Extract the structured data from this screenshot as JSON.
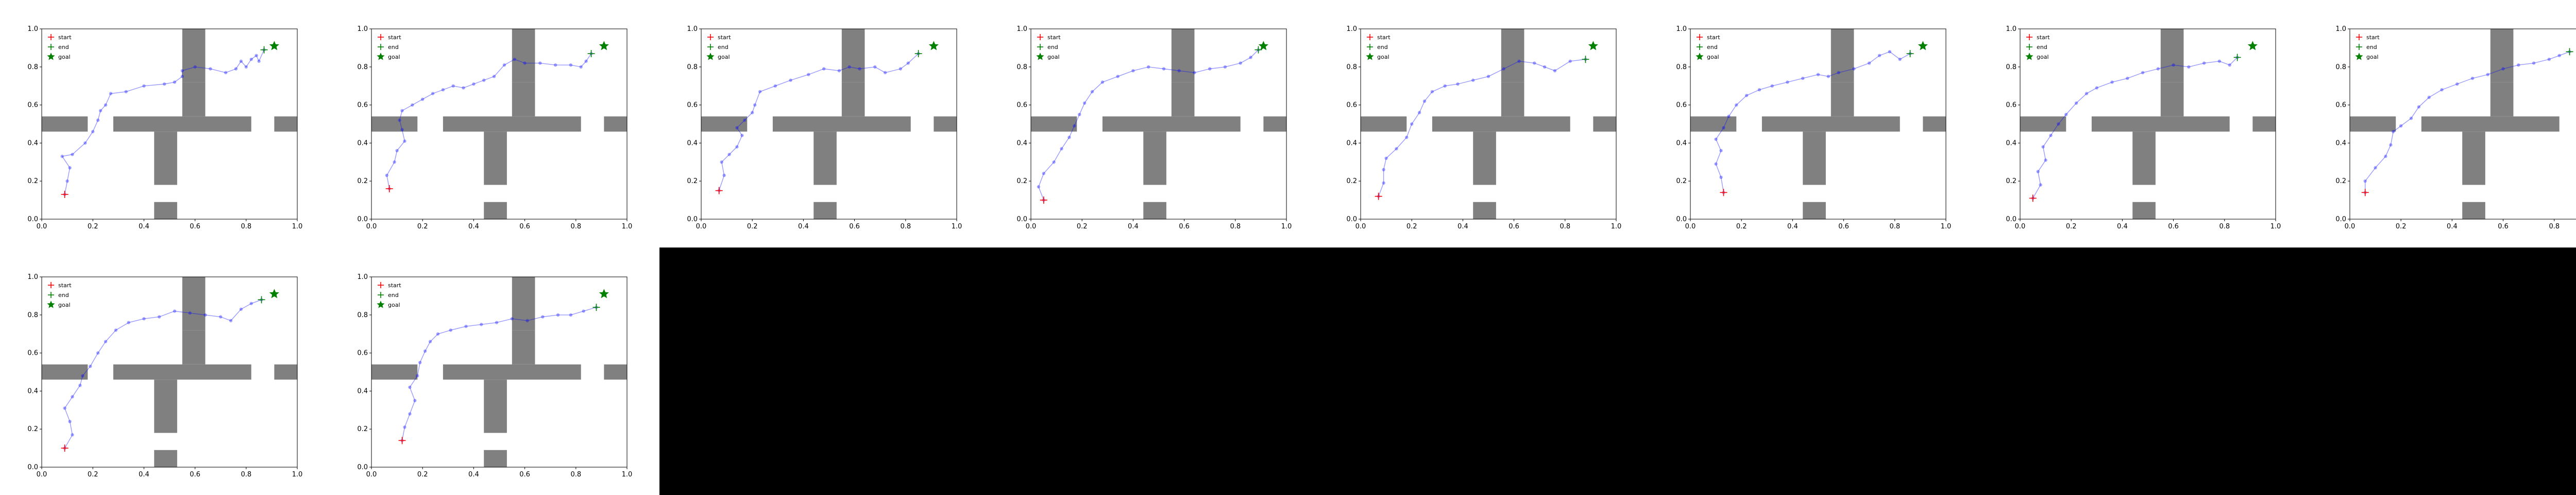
{
  "figure": {
    "rows": 2,
    "cols": 8,
    "panel_count": 10,
    "blank_area_color": "#000000"
  },
  "legend": {
    "labels": [
      "start",
      "end",
      "goal"
    ],
    "placement": "top-left"
  },
  "colors": {
    "obstacle": "#808080",
    "path": "#0000ff",
    "start": "#ff0000",
    "end": "#008000",
    "goal": "#008000"
  },
  "axes": {
    "xlim": [
      0,
      1
    ],
    "ylim": [
      0,
      1
    ],
    "xticks": [
      "0.0",
      "0.2",
      "0.4",
      "0.6",
      "0.8",
      "1.0"
    ],
    "yticks": [
      "0.0",
      "0.2",
      "0.4",
      "0.6",
      "0.8",
      "1.0"
    ]
  },
  "chart_data": {
    "type": "scatter",
    "xlim": [
      0,
      1
    ],
    "ylim": [
      0,
      1
    ],
    "grid": false,
    "goal": [
      0.91,
      0.91
    ],
    "obstacles": [
      {
        "x": [
          0.0,
          0.18
        ],
        "y": [
          0.46,
          0.54
        ]
      },
      {
        "x": [
          0.28,
          0.82
        ],
        "y": [
          0.46,
          0.54
        ]
      },
      {
        "x": [
          0.91,
          1.0
        ],
        "y": [
          0.46,
          0.54
        ]
      },
      {
        "x": [
          0.55,
          0.64
        ],
        "y": [
          0.72,
          0.92
        ]
      },
      {
        "x": [
          0.55,
          0.64
        ],
        "y": [
          0.92,
          1.0
        ]
      },
      {
        "x": [
          0.55,
          0.64
        ],
        "y": [
          0.54,
          0.72
        ]
      },
      {
        "x": [
          0.44,
          0.53
        ],
        "y": [
          0.18,
          0.46
        ]
      },
      {
        "x": [
          0.44,
          0.53
        ],
        "y": [
          0.0,
          0.09
        ]
      }
    ],
    "panels": [
      {
        "start": [
          0.09,
          0.13
        ],
        "end": [
          0.87,
          0.89
        ],
        "path": [
          [
            0.09,
            0.13
          ],
          [
            0.1,
            0.2
          ],
          [
            0.11,
            0.27
          ],
          [
            0.08,
            0.33
          ],
          [
            0.12,
            0.34
          ],
          [
            0.17,
            0.4
          ],
          [
            0.2,
            0.46
          ],
          [
            0.22,
            0.52
          ],
          [
            0.23,
            0.57
          ],
          [
            0.25,
            0.6
          ],
          [
            0.27,
            0.66
          ],
          [
            0.33,
            0.67
          ],
          [
            0.4,
            0.7
          ],
          [
            0.48,
            0.71
          ],
          [
            0.52,
            0.72
          ],
          [
            0.55,
            0.75
          ],
          [
            0.55,
            0.78
          ],
          [
            0.6,
            0.8
          ],
          [
            0.66,
            0.79
          ],
          [
            0.72,
            0.77
          ],
          [
            0.76,
            0.79
          ],
          [
            0.78,
            0.83
          ],
          [
            0.8,
            0.8
          ],
          [
            0.82,
            0.84
          ],
          [
            0.84,
            0.86
          ],
          [
            0.85,
            0.83
          ],
          [
            0.87,
            0.89
          ]
        ]
      },
      {
        "start": [
          0.07,
          0.16
        ],
        "end": [
          0.86,
          0.87
        ],
        "path": [
          [
            0.07,
            0.16
          ],
          [
            0.06,
            0.23
          ],
          [
            0.09,
            0.3
          ],
          [
            0.1,
            0.36
          ],
          [
            0.13,
            0.41
          ],
          [
            0.12,
            0.47
          ],
          [
            0.11,
            0.52
          ],
          [
            0.12,
            0.57
          ],
          [
            0.16,
            0.6
          ],
          [
            0.2,
            0.63
          ],
          [
            0.24,
            0.66
          ],
          [
            0.28,
            0.68
          ],
          [
            0.32,
            0.7
          ],
          [
            0.36,
            0.69
          ],
          [
            0.4,
            0.71
          ],
          [
            0.44,
            0.73
          ],
          [
            0.48,
            0.75
          ],
          [
            0.52,
            0.81
          ],
          [
            0.56,
            0.84
          ],
          [
            0.6,
            0.82
          ],
          [
            0.66,
            0.82
          ],
          [
            0.72,
            0.81
          ],
          [
            0.78,
            0.81
          ],
          [
            0.82,
            0.8
          ],
          [
            0.84,
            0.83
          ],
          [
            0.86,
            0.87
          ]
        ]
      },
      {
        "start": [
          0.07,
          0.15
        ],
        "end": [
          0.85,
          0.87
        ],
        "path": [
          [
            0.07,
            0.15
          ],
          [
            0.09,
            0.23
          ],
          [
            0.08,
            0.3
          ],
          [
            0.11,
            0.34
          ],
          [
            0.14,
            0.38
          ],
          [
            0.16,
            0.44
          ],
          [
            0.14,
            0.48
          ],
          [
            0.17,
            0.52
          ],
          [
            0.2,
            0.56
          ],
          [
            0.21,
            0.6
          ],
          [
            0.23,
            0.67
          ],
          [
            0.29,
            0.7
          ],
          [
            0.35,
            0.73
          ],
          [
            0.42,
            0.76
          ],
          [
            0.48,
            0.79
          ],
          [
            0.54,
            0.78
          ],
          [
            0.58,
            0.8
          ],
          [
            0.62,
            0.79
          ],
          [
            0.68,
            0.8
          ],
          [
            0.72,
            0.77
          ],
          [
            0.78,
            0.79
          ],
          [
            0.81,
            0.82
          ],
          [
            0.85,
            0.87
          ]
        ]
      },
      {
        "start": [
          0.05,
          0.1
        ],
        "end": [
          0.89,
          0.89
        ],
        "path": [
          [
            0.05,
            0.1
          ],
          [
            0.03,
            0.17
          ],
          [
            0.05,
            0.24
          ],
          [
            0.09,
            0.3
          ],
          [
            0.12,
            0.37
          ],
          [
            0.15,
            0.43
          ],
          [
            0.17,
            0.49
          ],
          [
            0.19,
            0.55
          ],
          [
            0.21,
            0.61
          ],
          [
            0.24,
            0.67
          ],
          [
            0.28,
            0.72
          ],
          [
            0.34,
            0.75
          ],
          [
            0.4,
            0.78
          ],
          [
            0.46,
            0.8
          ],
          [
            0.52,
            0.79
          ],
          [
            0.58,
            0.78
          ],
          [
            0.64,
            0.77
          ],
          [
            0.7,
            0.79
          ],
          [
            0.76,
            0.8
          ],
          [
            0.82,
            0.82
          ],
          [
            0.86,
            0.85
          ],
          [
            0.89,
            0.89
          ]
        ]
      },
      {
        "start": [
          0.07,
          0.12
        ],
        "end": [
          0.88,
          0.84
        ],
        "path": [
          [
            0.07,
            0.12
          ],
          [
            0.09,
            0.19
          ],
          [
            0.09,
            0.26
          ],
          [
            0.1,
            0.32
          ],
          [
            0.14,
            0.37
          ],
          [
            0.18,
            0.43
          ],
          [
            0.2,
            0.5
          ],
          [
            0.23,
            0.56
          ],
          [
            0.25,
            0.62
          ],
          [
            0.28,
            0.67
          ],
          [
            0.33,
            0.7
          ],
          [
            0.38,
            0.71
          ],
          [
            0.44,
            0.73
          ],
          [
            0.5,
            0.75
          ],
          [
            0.56,
            0.79
          ],
          [
            0.62,
            0.83
          ],
          [
            0.68,
            0.82
          ],
          [
            0.72,
            0.8
          ],
          [
            0.76,
            0.78
          ],
          [
            0.82,
            0.83
          ],
          [
            0.88,
            0.84
          ]
        ]
      },
      {
        "start": [
          0.13,
          0.14
        ],
        "end": [
          0.86,
          0.87
        ],
        "path": [
          [
            0.13,
            0.14
          ],
          [
            0.12,
            0.22
          ],
          [
            0.1,
            0.29
          ],
          [
            0.12,
            0.36
          ],
          [
            0.1,
            0.42
          ],
          [
            0.13,
            0.48
          ],
          [
            0.15,
            0.54
          ],
          [
            0.18,
            0.6
          ],
          [
            0.22,
            0.65
          ],
          [
            0.27,
            0.68
          ],
          [
            0.32,
            0.7
          ],
          [
            0.38,
            0.72
          ],
          [
            0.44,
            0.74
          ],
          [
            0.5,
            0.76
          ],
          [
            0.54,
            0.75
          ],
          [
            0.58,
            0.77
          ],
          [
            0.64,
            0.79
          ],
          [
            0.7,
            0.82
          ],
          [
            0.74,
            0.86
          ],
          [
            0.78,
            0.88
          ],
          [
            0.82,
            0.84
          ],
          [
            0.86,
            0.87
          ]
        ]
      },
      {
        "start": [
          0.05,
          0.11
        ],
        "end": [
          0.85,
          0.85
        ],
        "path": [
          [
            0.05,
            0.11
          ],
          [
            0.08,
            0.18
          ],
          [
            0.07,
            0.25
          ],
          [
            0.1,
            0.31
          ],
          [
            0.09,
            0.38
          ],
          [
            0.12,
            0.44
          ],
          [
            0.15,
            0.5
          ],
          [
            0.18,
            0.55
          ],
          [
            0.22,
            0.61
          ],
          [
            0.26,
            0.66
          ],
          [
            0.3,
            0.69
          ],
          [
            0.36,
            0.72
          ],
          [
            0.42,
            0.74
          ],
          [
            0.48,
            0.77
          ],
          [
            0.54,
            0.79
          ],
          [
            0.6,
            0.81
          ],
          [
            0.66,
            0.8
          ],
          [
            0.72,
            0.82
          ],
          [
            0.78,
            0.83
          ],
          [
            0.82,
            0.81
          ],
          [
            0.85,
            0.85
          ]
        ]
      },
      {
        "start": [
          0.06,
          0.14
        ],
        "end": [
          0.86,
          0.88
        ],
        "path": [
          [
            0.06,
            0.14
          ],
          [
            0.06,
            0.2
          ],
          [
            0.1,
            0.27
          ],
          [
            0.14,
            0.33
          ],
          [
            0.16,
            0.39
          ],
          [
            0.17,
            0.46
          ],
          [
            0.2,
            0.49
          ],
          [
            0.24,
            0.53
          ],
          [
            0.27,
            0.59
          ],
          [
            0.31,
            0.64
          ],
          [
            0.36,
            0.68
          ],
          [
            0.42,
            0.71
          ],
          [
            0.48,
            0.74
          ],
          [
            0.54,
            0.76
          ],
          [
            0.6,
            0.79
          ],
          [
            0.66,
            0.81
          ],
          [
            0.72,
            0.82
          ],
          [
            0.78,
            0.84
          ],
          [
            0.82,
            0.86
          ],
          [
            0.86,
            0.88
          ]
        ]
      },
      {
        "start": [
          0.09,
          0.1
        ],
        "end": [
          0.86,
          0.88
        ],
        "path": [
          [
            0.09,
            0.1
          ],
          [
            0.12,
            0.17
          ],
          [
            0.11,
            0.24
          ],
          [
            0.09,
            0.31
          ],
          [
            0.12,
            0.37
          ],
          [
            0.15,
            0.43
          ],
          [
            0.16,
            0.48
          ],
          [
            0.19,
            0.53
          ],
          [
            0.22,
            0.6
          ],
          [
            0.25,
            0.66
          ],
          [
            0.29,
            0.72
          ],
          [
            0.34,
            0.76
          ],
          [
            0.4,
            0.78
          ],
          [
            0.46,
            0.79
          ],
          [
            0.52,
            0.82
          ],
          [
            0.58,
            0.81
          ],
          [
            0.64,
            0.8
          ],
          [
            0.7,
            0.79
          ],
          [
            0.74,
            0.77
          ],
          [
            0.78,
            0.83
          ],
          [
            0.82,
            0.86
          ],
          [
            0.86,
            0.88
          ]
        ]
      },
      {
        "start": [
          0.12,
          0.14
        ],
        "end": [
          0.88,
          0.84
        ],
        "path": [
          [
            0.12,
            0.14
          ],
          [
            0.13,
            0.21
          ],
          [
            0.15,
            0.28
          ],
          [
            0.17,
            0.35
          ],
          [
            0.15,
            0.42
          ],
          [
            0.18,
            0.48
          ],
          [
            0.19,
            0.55
          ],
          [
            0.21,
            0.61
          ],
          [
            0.23,
            0.66
          ],
          [
            0.26,
            0.7
          ],
          [
            0.31,
            0.72
          ],
          [
            0.37,
            0.74
          ],
          [
            0.43,
            0.75
          ],
          [
            0.49,
            0.76
          ],
          [
            0.55,
            0.78
          ],
          [
            0.61,
            0.77
          ],
          [
            0.67,
            0.79
          ],
          [
            0.73,
            0.8
          ],
          [
            0.78,
            0.8
          ],
          [
            0.83,
            0.82
          ],
          [
            0.88,
            0.84
          ]
        ]
      }
    ]
  }
}
